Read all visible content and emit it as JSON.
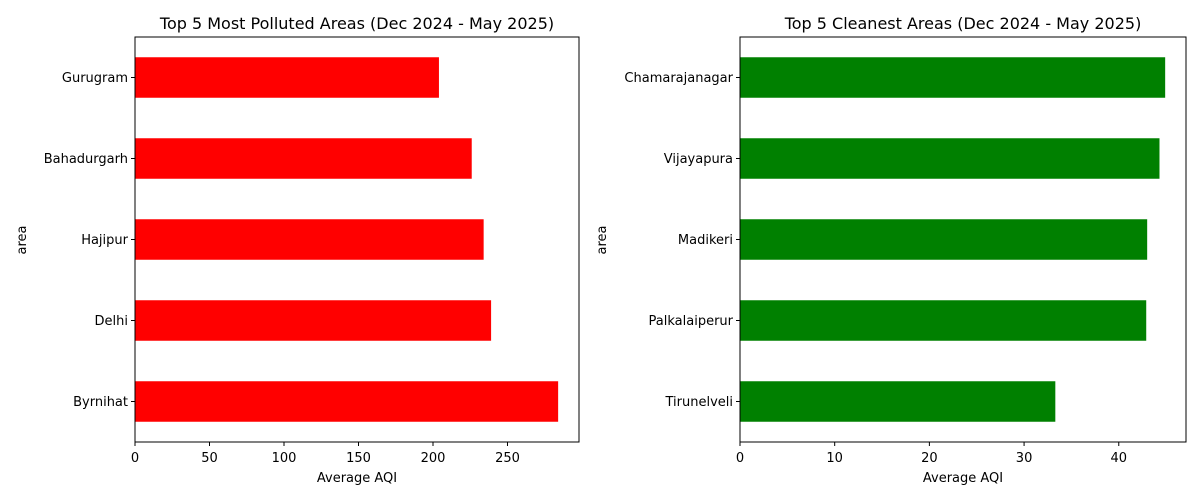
{
  "chart_data": [
    {
      "type": "bar",
      "orientation": "horizontal",
      "title": "Top 5 Most Polluted Areas (Dec 2024 - May 2025)",
      "xlabel": "Average AQI",
      "ylabel": "area",
      "categories": [
        "Byrnihat",
        "Delhi",
        "Hajipur",
        "Bahadurgarh",
        "Gurugram"
      ],
      "values": [
        284,
        239,
        234,
        226,
        204
      ],
      "xlim": [
        0,
        298
      ],
      "xticks": [
        0,
        50,
        100,
        150,
        200,
        250
      ],
      "color": "#ff0000",
      "grid": false,
      "legend": false
    },
    {
      "type": "bar",
      "orientation": "horizontal",
      "title": "Top 5 Cleanest Areas (Dec 2024 - May 2025)",
      "xlabel": "Average AQI",
      "ylabel": "area",
      "categories": [
        "Tirunelveli",
        "Palkalaiperur",
        "Madikeri",
        "Vijayapura",
        "Chamarajanagar"
      ],
      "values": [
        33.3,
        42.9,
        43.0,
        44.3,
        44.9
      ],
      "xlim": [
        0,
        47.1
      ],
      "xticks": [
        0,
        10,
        20,
        30,
        40
      ],
      "color": "#008000",
      "grid": false,
      "legend": false
    }
  ]
}
